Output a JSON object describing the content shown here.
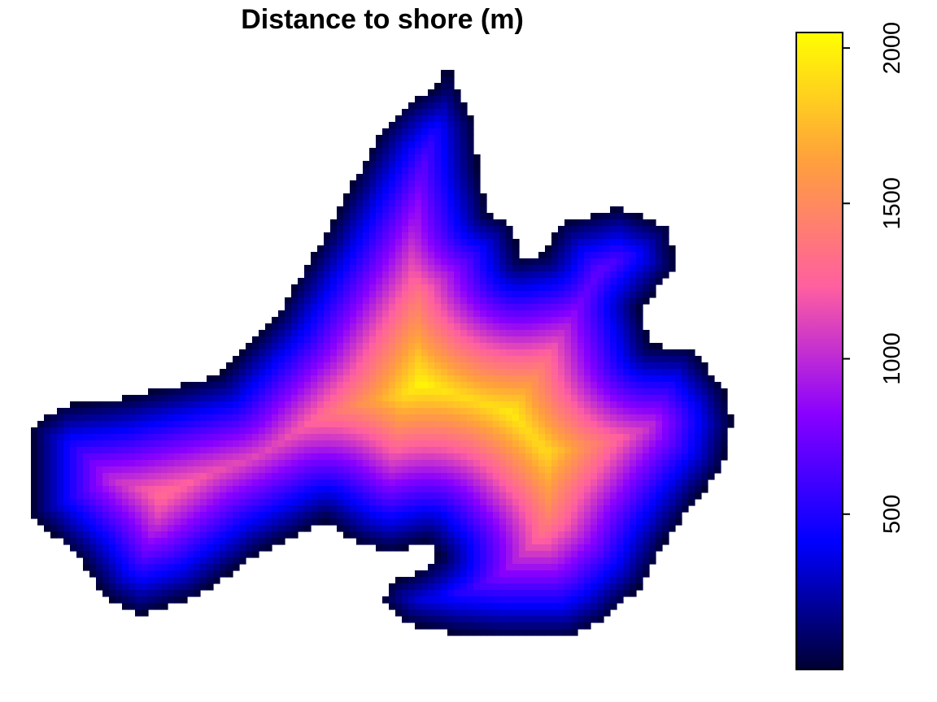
{
  "chart_data": {
    "type": "heatmap",
    "title": "Distance to shore (m)",
    "value_range": [
      0,
      2050
    ],
    "colorbar": {
      "ticks": [
        500,
        1000,
        1500,
        2000
      ],
      "tick_labels": [
        "500",
        "1000",
        "1500",
        "2000"
      ],
      "placement": "right",
      "palette": [
        "#000033",
        "#0000ff",
        "#8800ff",
        "#ff5fa0",
        "#ffa03c",
        "#ffff00"
      ]
    },
    "background_color": "#ffffff",
    "shore_value": 0,
    "interior_maximum": 2000
  }
}
